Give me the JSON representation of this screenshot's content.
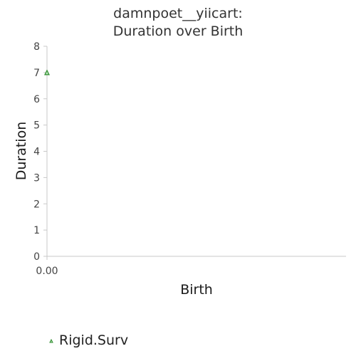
{
  "chart_data": {
    "type": "scatter",
    "title_lines": [
      "damnpoet__yiicart:",
      "Duration over Birth"
    ],
    "xlabel": "Birth",
    "ylabel": "Duration",
    "xlim": [
      0,
      1
    ],
    "ylim": [
      0,
      8
    ],
    "x_ticks": [
      "0.00"
    ],
    "y_ticks": [
      "0",
      "1",
      "2",
      "3",
      "4",
      "5",
      "6",
      "7",
      "8"
    ],
    "grid": false,
    "legend_position": "bottom-left",
    "series": [
      {
        "name": "Rigid.Surv",
        "marker": "triangle",
        "color": "#2e8b2e",
        "fill": "#b8e6b8",
        "points": [
          {
            "x": 0.0,
            "y": 7.0
          }
        ]
      }
    ]
  }
}
